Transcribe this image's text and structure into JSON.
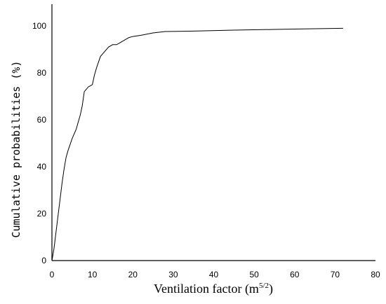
{
  "chart_data": {
    "type": "line",
    "title": "",
    "xlabel": "Ventilation factor (m",
    "xlabel_sup": "5/2",
    "xlabel_close": ")",
    "ylabel": "Cumulative probabilities (%)",
    "xlim": [
      0,
      80
    ],
    "ylim": [
      0,
      100
    ],
    "x_ticks": [
      0,
      10,
      20,
      30,
      40,
      50,
      60,
      70,
      80
    ],
    "y_ticks": [
      0,
      20,
      40,
      60,
      80,
      100
    ],
    "grid": false,
    "line_color": "#000000",
    "series": [
      {
        "x": [
          0,
          0.5,
          1,
          1.5,
          2,
          2.5,
          3,
          3.5,
          4,
          5,
          6,
          7,
          7.5,
          8,
          8.5,
          9,
          10,
          10.5,
          11,
          12,
          13,
          14,
          15,
          16,
          17,
          18,
          19,
          20,
          22,
          25,
          28,
          35,
          45,
          55,
          65,
          72
        ],
        "y": [
          0,
          5,
          12,
          19,
          26,
          33,
          39,
          44,
          47,
          52,
          56,
          62,
          66,
          72,
          73,
          74,
          75,
          79,
          82,
          87,
          89,
          91,
          92,
          92,
          93,
          94,
          95,
          95.5,
          96,
          97,
          97.6,
          97.8,
          98.2,
          98.5,
          98.8,
          99
        ]
      }
    ]
  }
}
